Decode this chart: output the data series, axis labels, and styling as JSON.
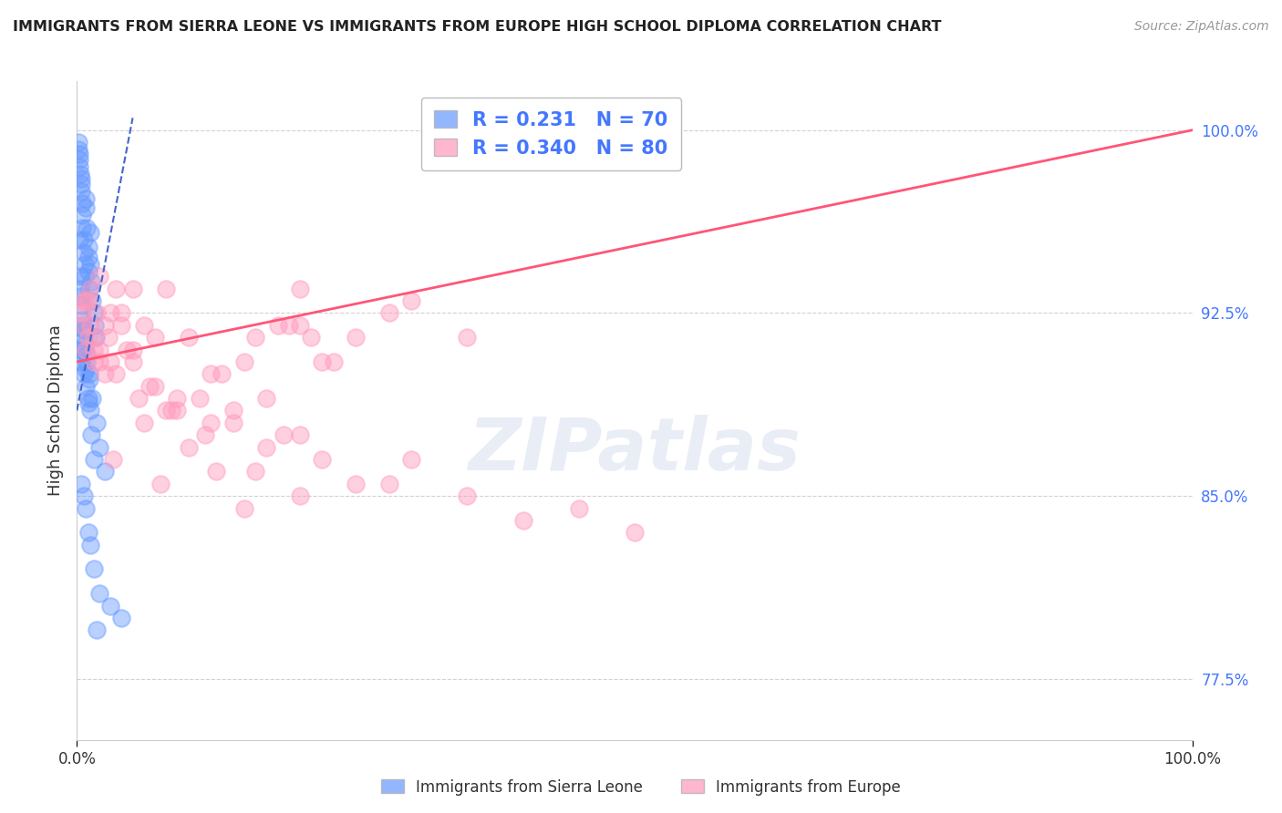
{
  "title": "IMMIGRANTS FROM SIERRA LEONE VS IMMIGRANTS FROM EUROPE HIGH SCHOOL DIPLOMA CORRELATION CHART",
  "source": "Source: ZipAtlas.com",
  "ylabel": "High School Diploma",
  "ylabel_right_ticks": [
    77.5,
    85.0,
    92.5,
    100.0
  ],
  "ylabel_right_labels": [
    "77.5%",
    "85.0%",
    "92.5%",
    "100.0%"
  ],
  "legend_label1": "Immigrants from Sierra Leone",
  "legend_label2": "Immigrants from Europe",
  "R1": 0.231,
  "N1": 70,
  "R2": 0.34,
  "N2": 80,
  "color_blue": "#6699ff",
  "color_pink": "#ff99bb",
  "color_trend_blue": "#4466cc",
  "color_trend_pink": "#ff5577",
  "watermark": "ZIPatlas",
  "xmin": 0,
  "xmax": 100,
  "ymin": 75,
  "ymax": 102,
  "blue_x": [
    0.1,
    0.15,
    0.2,
    0.2,
    0.25,
    0.3,
    0.35,
    0.4,
    0.4,
    0.5,
    0.5,
    0.5,
    0.6,
    0.6,
    0.7,
    0.7,
    0.8,
    0.8,
    0.9,
    1.0,
    1.0,
    1.0,
    1.1,
    1.2,
    1.2,
    1.3,
    1.4,
    1.5,
    1.6,
    1.7,
    0.3,
    0.4,
    0.6,
    0.8,
    1.0,
    1.2,
    0.5,
    0.7,
    0.9,
    1.1,
    0.2,
    0.3,
    0.4,
    0.5,
    0.6,
    0.7,
    0.8,
    1.0,
    1.3,
    1.5,
    0.3,
    0.5,
    0.6,
    0.7,
    0.9,
    1.1,
    1.4,
    1.8,
    2.0,
    2.5,
    0.4,
    0.6,
    0.8,
    1.0,
    1.2,
    1.5,
    2.0,
    3.0,
    4.0,
    1.8
  ],
  "blue_y": [
    99.5,
    99.2,
    99.0,
    98.8,
    98.5,
    98.2,
    98.0,
    97.8,
    97.5,
    97.0,
    96.5,
    96.0,
    95.5,
    95.0,
    94.5,
    94.0,
    96.8,
    97.2,
    96.0,
    95.2,
    94.8,
    94.2,
    93.5,
    95.8,
    94.5,
    93.8,
    93.0,
    92.5,
    92.0,
    91.5,
    91.0,
    90.5,
    90.0,
    89.5,
    89.0,
    88.5,
    92.8,
    91.8,
    90.8,
    89.8,
    95.5,
    94.0,
    93.2,
    92.2,
    91.8,
    91.2,
    90.2,
    88.8,
    87.5,
    86.5,
    93.5,
    92.0,
    91.5,
    91.0,
    90.5,
    90.0,
    89.0,
    88.0,
    87.0,
    86.0,
    85.5,
    85.0,
    84.5,
    83.5,
    83.0,
    82.0,
    81.0,
    80.5,
    80.0,
    79.5
  ],
  "pink_x": [
    0.5,
    1.0,
    1.5,
    2.0,
    2.5,
    3.0,
    4.0,
    5.0,
    6.0,
    8.0,
    10.0,
    12.0,
    15.0,
    18.0,
    20.0,
    22.0,
    25.0,
    28.0,
    30.0,
    35.0,
    2.0,
    3.5,
    5.0,
    7.0,
    9.0,
    11.0,
    13.0,
    16.0,
    19.0,
    23.0,
    1.2,
    1.8,
    2.8,
    4.5,
    6.5,
    8.5,
    11.5,
    14.0,
    17.0,
    21.0,
    3.2,
    7.5,
    12.5,
    18.5,
    0.8,
    1.5,
    4.0,
    9.0,
    15.0,
    20.0,
    0.6,
    1.2,
    2.0,
    3.5,
    5.5,
    8.0,
    12.0,
    17.0,
    22.0,
    28.0,
    40.0,
    50.0,
    1.0,
    2.5,
    6.0,
    10.0,
    16.0,
    25.0,
    35.0,
    45.0,
    0.5,
    1.5,
    3.0,
    7.0,
    14.0,
    20.0,
    30.0,
    0.8,
    5.0,
    20.0
  ],
  "pink_y": [
    92.5,
    93.0,
    91.5,
    90.5,
    92.0,
    92.5,
    92.0,
    93.5,
    92.0,
    93.5,
    91.5,
    90.0,
    90.5,
    92.0,
    93.5,
    90.5,
    91.5,
    92.5,
    93.0,
    91.5,
    94.0,
    93.5,
    90.5,
    91.5,
    88.5,
    89.0,
    90.0,
    91.5,
    92.0,
    90.5,
    93.5,
    92.5,
    91.5,
    91.0,
    89.5,
    88.5,
    87.5,
    88.0,
    89.0,
    91.5,
    86.5,
    85.5,
    86.0,
    87.5,
    91.0,
    90.5,
    92.5,
    89.0,
    84.5,
    85.0,
    93.0,
    92.0,
    91.0,
    90.0,
    89.0,
    88.5,
    88.0,
    87.0,
    86.5,
    85.5,
    84.0,
    83.5,
    91.5,
    90.0,
    88.0,
    87.0,
    86.0,
    85.5,
    85.0,
    84.5,
    92.0,
    91.0,
    90.5,
    89.5,
    88.5,
    87.5,
    86.5,
    93.0,
    91.0,
    92.0
  ],
  "blue_trendline_x": [
    0,
    5
  ],
  "blue_trendline_y": [
    88.5,
    100.5
  ],
  "pink_trendline_x": [
    0,
    100
  ],
  "pink_trendline_y": [
    90.5,
    100.0
  ]
}
